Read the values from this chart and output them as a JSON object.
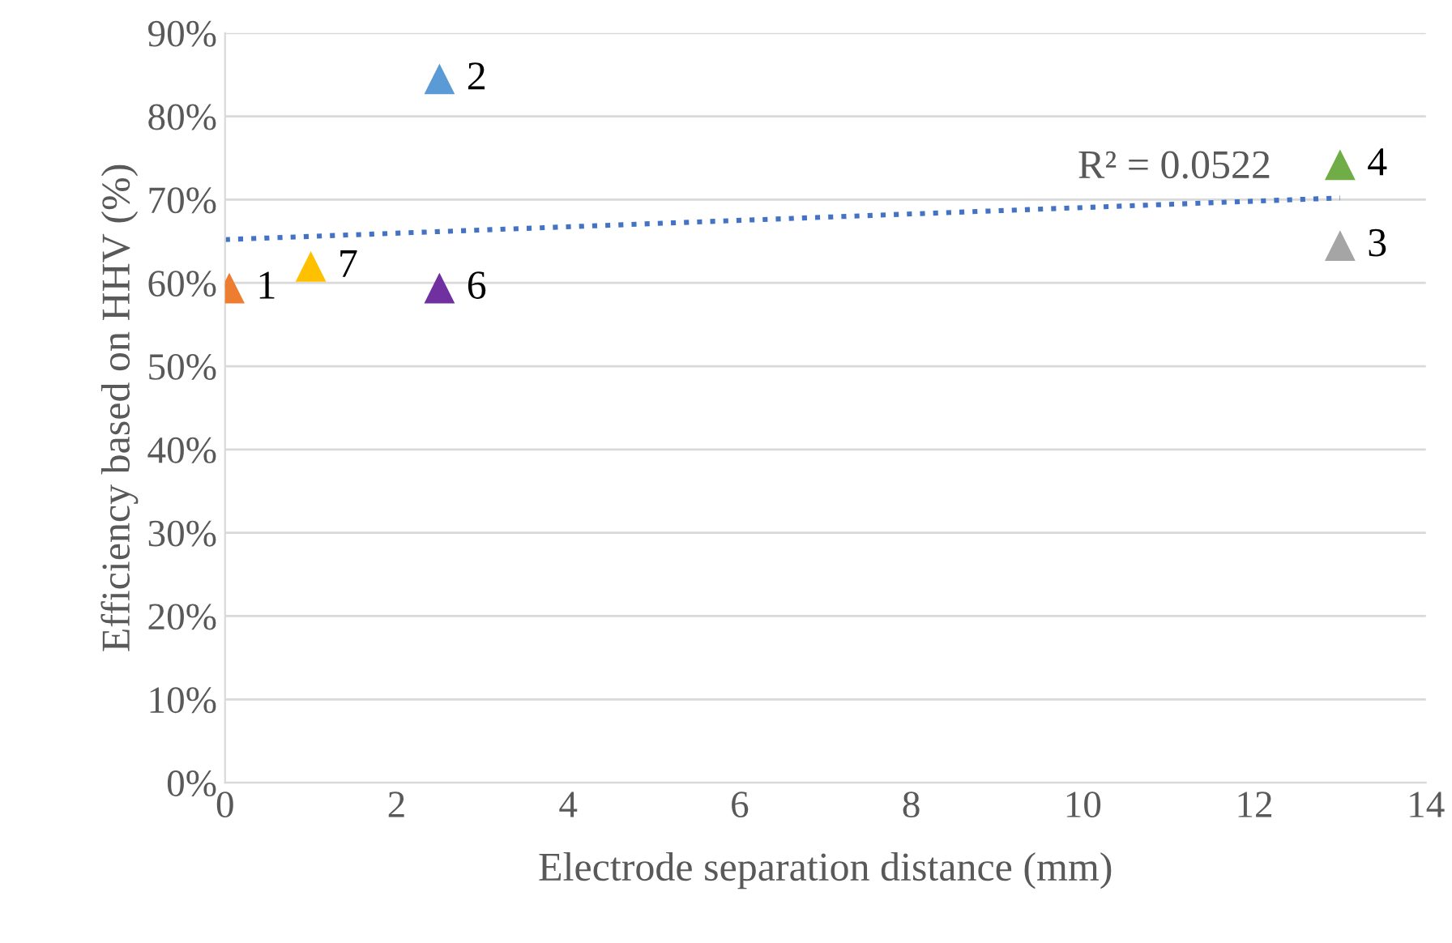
{
  "chart_data": {
    "type": "scatter",
    "xlabel": "Electrode separation distance (mm)",
    "ylabel": "Efficiency based on HHV (%)",
    "xlim": [
      0,
      14
    ],
    "xticks": [
      0,
      2,
      4,
      6,
      8,
      10,
      12,
      14
    ],
    "ylim": [
      0,
      90
    ],
    "yticks": [
      {
        "value": 0,
        "label": "0%"
      },
      {
        "value": 10,
        "label": "10%"
      },
      {
        "value": 20,
        "label": "20%"
      },
      {
        "value": 30,
        "label": "30%"
      },
      {
        "value": 40,
        "label": "40%"
      },
      {
        "value": 50,
        "label": "50%"
      },
      {
        "value": 60,
        "label": "60%"
      },
      {
        "value": 70,
        "label": "70%"
      },
      {
        "value": 80,
        "label": "80%"
      },
      {
        "value": 90,
        "label": "90%"
      }
    ],
    "grid": "y",
    "marker": "triangle",
    "series": [
      {
        "name": "1",
        "color": "#ed7d31",
        "x": [
          0.05
        ],
        "values": [
          59.3
        ]
      },
      {
        "name": "2",
        "color": "#5b9bd5",
        "x": [
          2.5
        ],
        "values": [
          84.4
        ]
      },
      {
        "name": "3",
        "color": "#a5a5a5",
        "x": [
          13
        ],
        "values": [
          64.4
        ]
      },
      {
        "name": "4",
        "color": "#70ad47",
        "x": [
          13
        ],
        "values": [
          74.1
        ]
      },
      {
        "name": "6",
        "color": "#7030a0",
        "x": [
          2.5
        ],
        "values": [
          59.3
        ]
      },
      {
        "name": "7",
        "color": "#ffc000",
        "x": [
          1
        ],
        "values": [
          61.9
        ]
      },
      {
        "type": "line",
        "color": "#4472c4",
        "line_style": "dotted",
        "marker": "none",
        "x": [
          0,
          13
        ],
        "values": [
          65.2,
          70.2
        ]
      }
    ],
    "annotations": [
      "R² = 0.0522"
    ]
  }
}
